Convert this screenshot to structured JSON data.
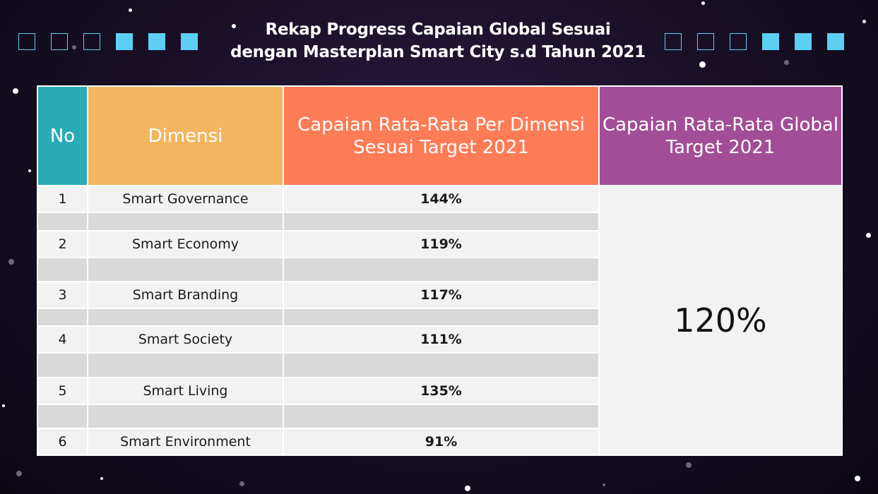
{
  "title": {
    "line1": "Rekap Progress Capaian Global Sesuai",
    "line2": "dengan Masterplan Smart City s.d Tahun 2021"
  },
  "colors": {
    "accent_square": "#5ccff3",
    "header_no": "#2aabb6",
    "header_dimensi": "#f3b560",
    "header_capaian": "#fc7c55",
    "header_global": "#a24d97"
  },
  "table": {
    "headers": {
      "no": "No",
      "dimensi": "Dimensi",
      "capaian": "Capaian Rata-Rata Per Dimensi Sesuai Target 2021",
      "global": "Capaian Rata-Rata Global Target 2021"
    },
    "rows": [
      {
        "no": "1",
        "dimensi": "Smart Governance",
        "capaian": "144%"
      },
      {
        "no": "2",
        "dimensi": "Smart Economy",
        "capaian": "119%"
      },
      {
        "no": "3",
        "dimensi": "Smart Branding",
        "capaian": "117%"
      },
      {
        "no": "4",
        "dimensi": "Smart Society",
        "capaian": "111%"
      },
      {
        "no": "5",
        "dimensi": "Smart Living",
        "capaian": "135%"
      },
      {
        "no": "6",
        "dimensi": "Smart Environment",
        "capaian": "91%"
      }
    ],
    "global_value": "120%"
  }
}
